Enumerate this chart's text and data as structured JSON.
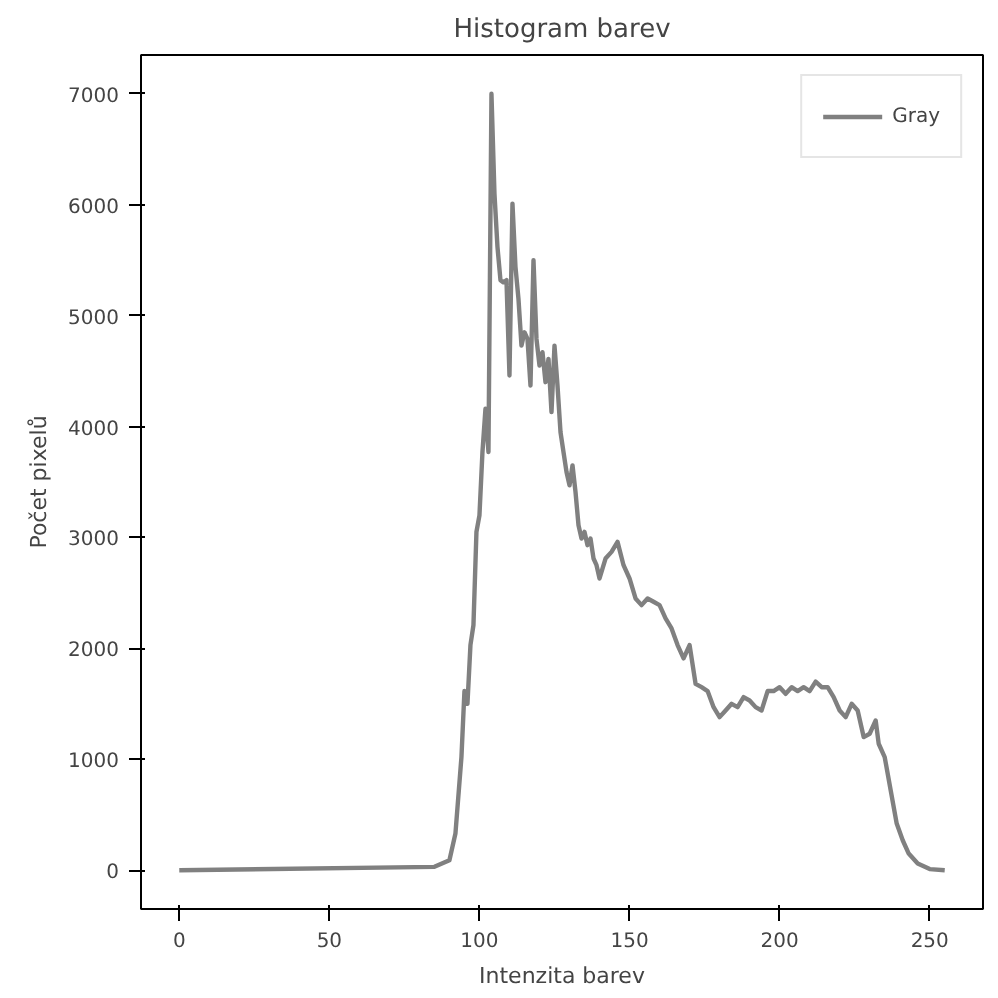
{
  "chart_data": {
    "type": "line",
    "title": "Histogram barev",
    "xlabel": "Intenzita barev",
    "ylabel": "Počet pixelů",
    "xlim": [
      -12.75,
      267.75
    ],
    "ylim": [
      -350,
      7350
    ],
    "xticks": [
      0,
      50,
      100,
      150,
      200,
      250
    ],
    "yticks": [
      0,
      1000,
      2000,
      3000,
      4000,
      5000,
      6000,
      7000
    ],
    "grid": false,
    "legend": "top right",
    "marker": "none",
    "line_style": "solid",
    "series": [
      {
        "name": "Gray",
        "color": "#808080",
        "x": [
          0,
          85,
          90,
          92,
          94,
          95,
          96,
          97,
          98,
          99,
          100,
          101,
          102,
          103,
          104,
          105,
          106,
          107,
          108,
          109,
          110,
          111,
          112,
          113,
          114,
          115,
          116,
          117,
          118,
          119,
          120,
          121,
          122,
          123,
          124,
          125,
          126,
          127,
          128,
          129,
          130,
          131,
          132,
          133,
          134,
          135,
          136,
          137,
          138,
          139,
          140,
          142,
          144,
          146,
          148,
          150,
          152,
          154,
          156,
          158,
          160,
          162,
          164,
          166,
          168,
          170,
          172,
          174,
          176,
          178,
          180,
          182,
          184,
          186,
          188,
          190,
          192,
          194,
          196,
          198,
          200,
          202,
          204,
          206,
          208,
          210,
          212,
          214,
          216,
          218,
          220,
          222,
          224,
          226,
          228,
          230,
          232,
          233,
          235,
          237,
          239,
          241,
          243,
          246,
          250,
          255
        ],
        "values": [
          0,
          30,
          90,
          330,
          1020,
          1615,
          1500,
          2030,
          2210,
          3050,
          3200,
          3770,
          4160,
          3770,
          7000,
          6100,
          5620,
          5320,
          5300,
          5320,
          4460,
          6010,
          5440,
          5150,
          4730,
          4850,
          4790,
          4370,
          5500,
          4790,
          4550,
          4670,
          4400,
          4610,
          4130,
          4730,
          4370,
          3950,
          3770,
          3590,
          3470,
          3650,
          3410,
          3110,
          2990,
          3050,
          2930,
          2990,
          2810,
          2750,
          2630,
          2810,
          2870,
          2960,
          2750,
          2630,
          2450,
          2390,
          2450,
          2420,
          2390,
          2270,
          2180,
          2030,
          1910,
          2030,
          1680,
          1650,
          1615,
          1470,
          1380,
          1440,
          1500,
          1470,
          1560,
          1530,
          1470,
          1440,
          1615,
          1615,
          1650,
          1590,
          1650,
          1615,
          1650,
          1615,
          1700,
          1650,
          1650,
          1560,
          1440,
          1380,
          1500,
          1440,
          1200,
          1230,
          1350,
          1140,
          1020,
          720,
          420,
          270,
          150,
          60,
          10,
          0
        ]
      }
    ]
  }
}
